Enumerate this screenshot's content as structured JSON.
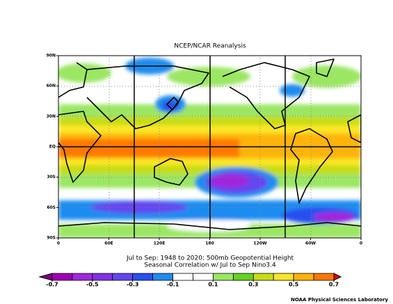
{
  "title": "NCEP/NCAR Reanalysis",
  "subtitle": [
    "Jul to Sep: 1948 to 2020: 500mb Geopotential Height",
    "Seasonal Correlation w/ Jul to Sep Nino3.4"
  ],
  "map": {
    "lat_ticks": [
      {
        "value": 90,
        "label": "90N"
      },
      {
        "value": 60,
        "label": "60N"
      },
      {
        "value": 30,
        "label": "30N"
      },
      {
        "value": 0,
        "label": "EQ"
      },
      {
        "value": -30,
        "label": "30S"
      },
      {
        "value": -60,
        "label": "60S"
      },
      {
        "value": -90,
        "label": "90S"
      }
    ],
    "lon_ticks": [
      {
        "value": 0,
        "label": "0"
      },
      {
        "value": 60,
        "label": "60E"
      },
      {
        "value": 120,
        "label": "120E"
      },
      {
        "value": 180,
        "label": "180"
      },
      {
        "value": 240,
        "label": "120W"
      },
      {
        "value": 300,
        "label": "60W"
      },
      {
        "value": 360,
        "label": "0"
      }
    ]
  },
  "colorbar": {
    "ticks": [
      -0.7,
      -0.5,
      -0.3,
      -0.1,
      0.1,
      0.3,
      0.5,
      0.7
    ],
    "colors": [
      "#800080",
      "#a000b4",
      "#a028dc",
      "#8232e6",
      "#6446f0",
      "#2850f0",
      "#1e8cf0",
      "#ffffff",
      "#ffffff",
      "#9be664",
      "#64d21e",
      "#c8dc14",
      "#fae628",
      "#ffb40a",
      "#ff7800",
      "#e60000"
    ]
  },
  "footer": "NOAA Physical Sciences Laboratory"
}
